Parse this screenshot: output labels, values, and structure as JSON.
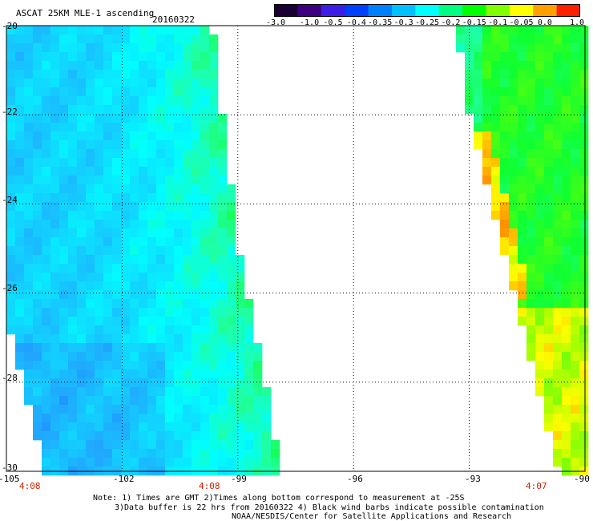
{
  "header": {
    "title": "ASCAT 25KM MLE-1 ascending",
    "date": "20160322"
  },
  "colorbar": {
    "labels": [
      "-3.0",
      "-1.0",
      "-0.5",
      "-0.4",
      "-0.35",
      "-0.3",
      "-0.25",
      "-0.2",
      "-0.15",
      "-0.1",
      "-0.05",
      "0.0",
      "1.0"
    ],
    "colors": [
      "#1a0033",
      "#3c0080",
      "#3c1ee6",
      "#0040ff",
      "#0080ff",
      "#00c0ff",
      "#00ffff",
      "#00ff80",
      "#00ff00",
      "#80ff00",
      "#ffff00",
      "#ffa000",
      "#ff2000"
    ]
  },
  "axes": {
    "lat_labels": [
      "-20",
      "-22",
      "-24",
      "-26",
      "-28",
      "-30"
    ],
    "lon_labels": [
      "-105",
      "-102",
      "-99",
      "-96",
      "-93",
      "-90"
    ],
    "lat_range": [
      -30,
      -20
    ],
    "lon_range": [
      -105,
      -90
    ]
  },
  "time_labels": [
    "4:08",
    "4:08",
    "4:07"
  ],
  "notes": {
    "line1": "Note: 1) Times are GMT 2)Times along bottom correspond to measurement at -25S",
    "line2": "3)Data buffer is 22 hrs from 20160322 4) Black wind barbs indicate possible contamination",
    "line3": "NOAA/NESDIS/Center for Satellite Applications and Research"
  }
}
